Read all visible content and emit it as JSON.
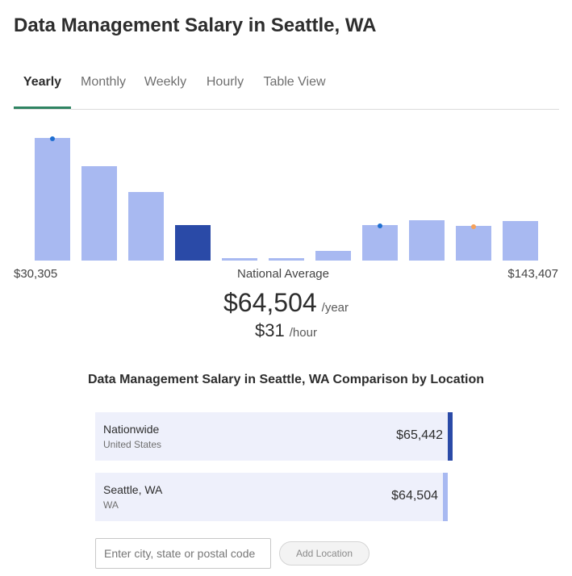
{
  "header": {
    "title": "Data Management Salary in Seattle, WA"
  },
  "tabs": [
    {
      "label": "Yearly",
      "active": true
    },
    {
      "label": "Monthly",
      "active": false
    },
    {
      "label": "Weekly",
      "active": false
    },
    {
      "label": "Hourly",
      "active": false
    },
    {
      "label": "Table View",
      "active": false
    }
  ],
  "colors": {
    "bar": "#a8b9f1",
    "bar_highlight": "#2a4aa7",
    "tab_underline": "#2f8462",
    "marker_blue": "#1f6fd1",
    "marker_orange": "#f5a25a",
    "card_background": "#eef0fb"
  },
  "chart_data": {
    "type": "bar",
    "title": "",
    "xlabel": "",
    "ylabel": "",
    "x_range_labels": [
      "$30,305",
      "$143,407"
    ],
    "center_label": "National Average",
    "relative_heights": [
      100,
      77,
      56,
      29,
      2,
      2,
      8,
      29,
      33,
      28,
      32
    ],
    "highlight_index": 3,
    "markers": [
      {
        "bar_index": 0,
        "color": "marker_blue"
      },
      {
        "bar_index": 7,
        "color": "marker_blue"
      },
      {
        "bar_index": 9,
        "color": "marker_orange"
      }
    ]
  },
  "average": {
    "yearly_value": "$64,504",
    "yearly_unit": "/year",
    "hourly_value": "$31",
    "hourly_unit": "/hour"
  },
  "comparison": {
    "heading": "Data Management Salary in Seattle, WA Comparison by Location",
    "locations": [
      {
        "name": "Nationwide",
        "sub": "United States",
        "salary": "$65,442",
        "relative_width": 1.0,
        "bar_color": "#2a4aa7"
      },
      {
        "name": "Seattle, WA",
        "sub": "WA",
        "salary": "$64,504",
        "relative_width": 0.986,
        "bar_color": "#a8b9f1"
      }
    ],
    "input_placeholder": "Enter city, state or postal code",
    "input_value": "",
    "add_button_label": "Add Location"
  }
}
